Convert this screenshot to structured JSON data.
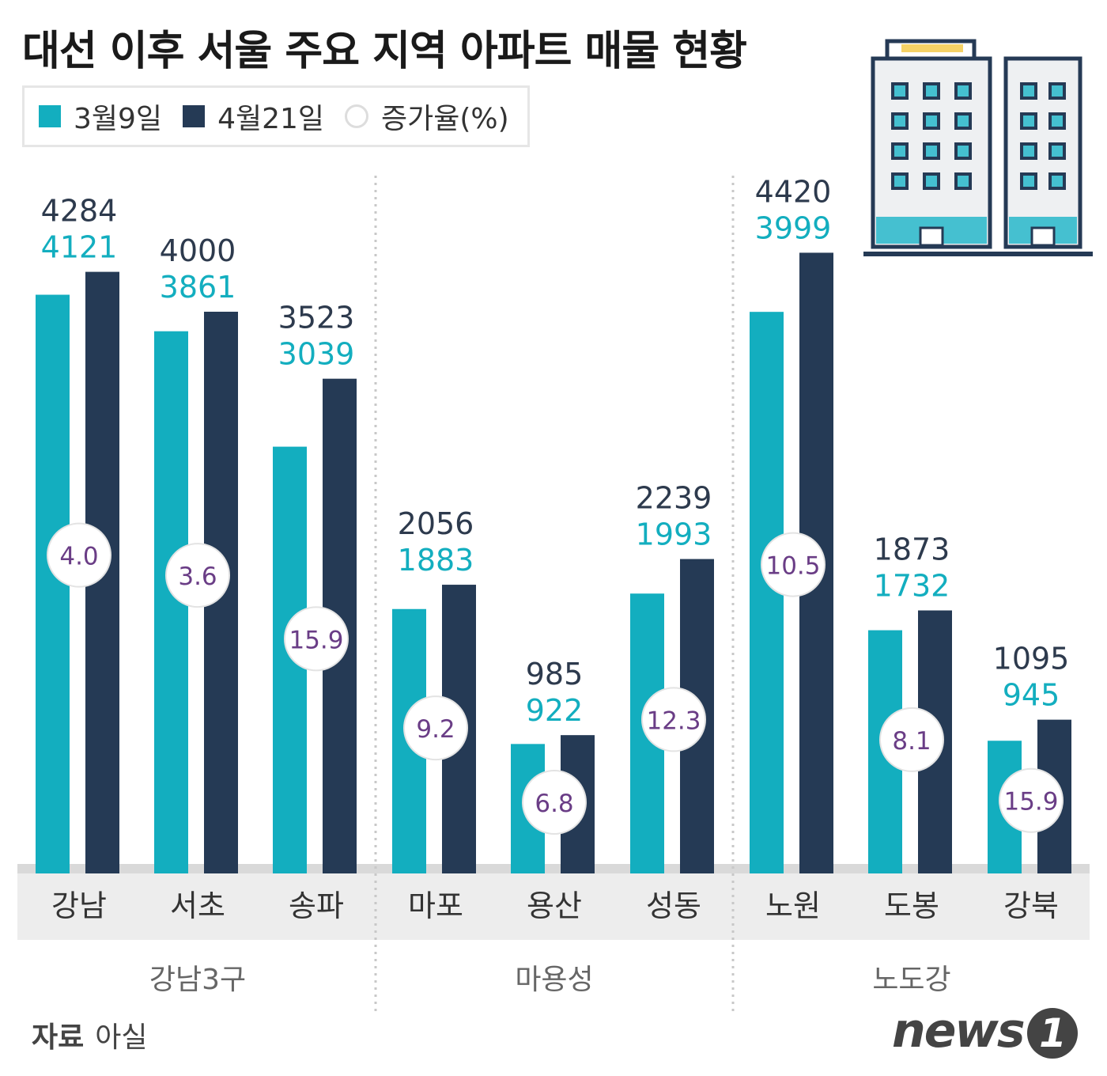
{
  "title": "대선 이후 서울 주요 지역 아파트 매물 현황",
  "legend": {
    "series1": "3월9일",
    "series2": "4월21일",
    "rate": "증가율(%)"
  },
  "source": {
    "label": "자료",
    "name": "아실"
  },
  "logo": {
    "text": "news",
    "mark": "1"
  },
  "colors": {
    "series1": "#13aebf",
    "series2": "#253a55",
    "rate_text": "#6a3d86",
    "band": "#ededed",
    "divider": "#c8c8c8"
  },
  "chart_data": {
    "type": "bar",
    "categories": [
      "강남",
      "서초",
      "송파",
      "마포",
      "용산",
      "성동",
      "노원",
      "도봉",
      "강북"
    ],
    "groups": [
      {
        "name": "강남3구",
        "categories": [
          "강남",
          "서초",
          "송파"
        ]
      },
      {
        "name": "마용성",
        "categories": [
          "마포",
          "용산",
          "성동"
        ]
      },
      {
        "name": "노도강",
        "categories": [
          "노원",
          "도봉",
          "강북"
        ]
      }
    ],
    "series": [
      {
        "name": "3월9일",
        "values": [
          4121,
          3861,
          3039,
          1883,
          922,
          1993,
          3999,
          1732,
          945
        ]
      },
      {
        "name": "4월21일",
        "values": [
          4284,
          4000,
          3523,
          2056,
          985,
          2239,
          4420,
          1873,
          1095
        ]
      }
    ],
    "rates": {
      "name": "증가율(%)",
      "values": [
        "4.0",
        "3.6",
        "15.9",
        "9.2",
        "6.8",
        "12.3",
        "10.5",
        "8.1",
        "15.9"
      ]
    },
    "ylim": [
      0,
      4500
    ]
  }
}
